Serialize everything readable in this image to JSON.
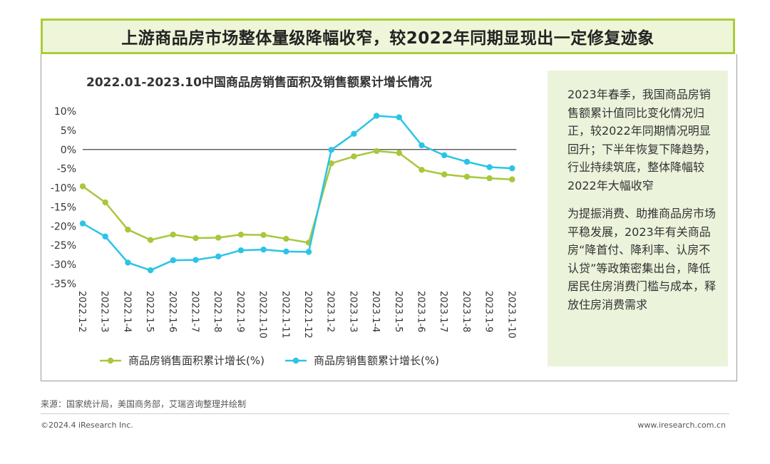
{
  "banner_title": "上游商品房市场整体量级降幅收窄，较2022年同期显现出一定修复迹象",
  "chart_data": {
    "type": "line",
    "title": "2022.01-2023.10中国商品房销售面积及销售额累计增长情况",
    "categories": [
      "2022.1-2",
      "2022.1-3",
      "2022.1-4",
      "2022.1-5",
      "2022.1-6",
      "2022.1-7",
      "2022.1-8",
      "2022.1-9",
      "2022.1-10",
      "2022.1-11",
      "2022.1-12",
      "2023.1-2",
      "2023.1-3",
      "2023.1-4",
      "2023.1-5",
      "2023.1-6",
      "2023.1-7",
      "2023.1-8",
      "2023.1-9",
      "2023.1-10"
    ],
    "series": [
      {
        "name": "商品房销售面积累计增长(%)",
        "color": "#a8c73b",
        "values": [
          -9.6,
          -13.8,
          -20.9,
          -23.6,
          -22.2,
          -23.1,
          -23.0,
          -22.2,
          -22.3,
          -23.3,
          -24.3,
          -3.6,
          -1.8,
          -0.4,
          -0.9,
          -5.3,
          -6.5,
          -7.1,
          -7.5,
          -7.8
        ]
      },
      {
        "name": "商品房销售额累计增长(%)",
        "color": "#2bc4e6",
        "values": [
          -19.3,
          -22.7,
          -29.5,
          -31.5,
          -28.9,
          -28.8,
          -27.9,
          -26.3,
          -26.1,
          -26.6,
          -26.7,
          -0.1,
          4.1,
          8.8,
          8.4,
          1.1,
          -1.5,
          -3.2,
          -4.6,
          -4.9
        ]
      }
    ],
    "yticks": [
      "10%",
      "5%",
      "0%",
      "-5%",
      "-10%",
      "-15%",
      "-20%",
      "-25%",
      "-30%",
      "-35%"
    ],
    "ylim": [
      -35,
      10
    ]
  },
  "side_notes": [
    "2023年春季，我国商品房销售额累计值同比变化情况归正，较2022年同期情况明显回升；下半年恢复下降趋势，行业持续筑底，整体降幅较2022年大幅收窄",
    "为提振消费、助推商品房市场平稳发展，2023年有关商品房“降首付、降利率、认房不认贷”等政策密集出台，降低居民住房消费门槛与成本，释放住房消费需求"
  ],
  "source": "来源：国家统计局，美国商务部，艾瑞咨询整理并绘制",
  "copyright": "©2024.4 iResearch Inc.",
  "website": "www.iresearch.com.cn"
}
